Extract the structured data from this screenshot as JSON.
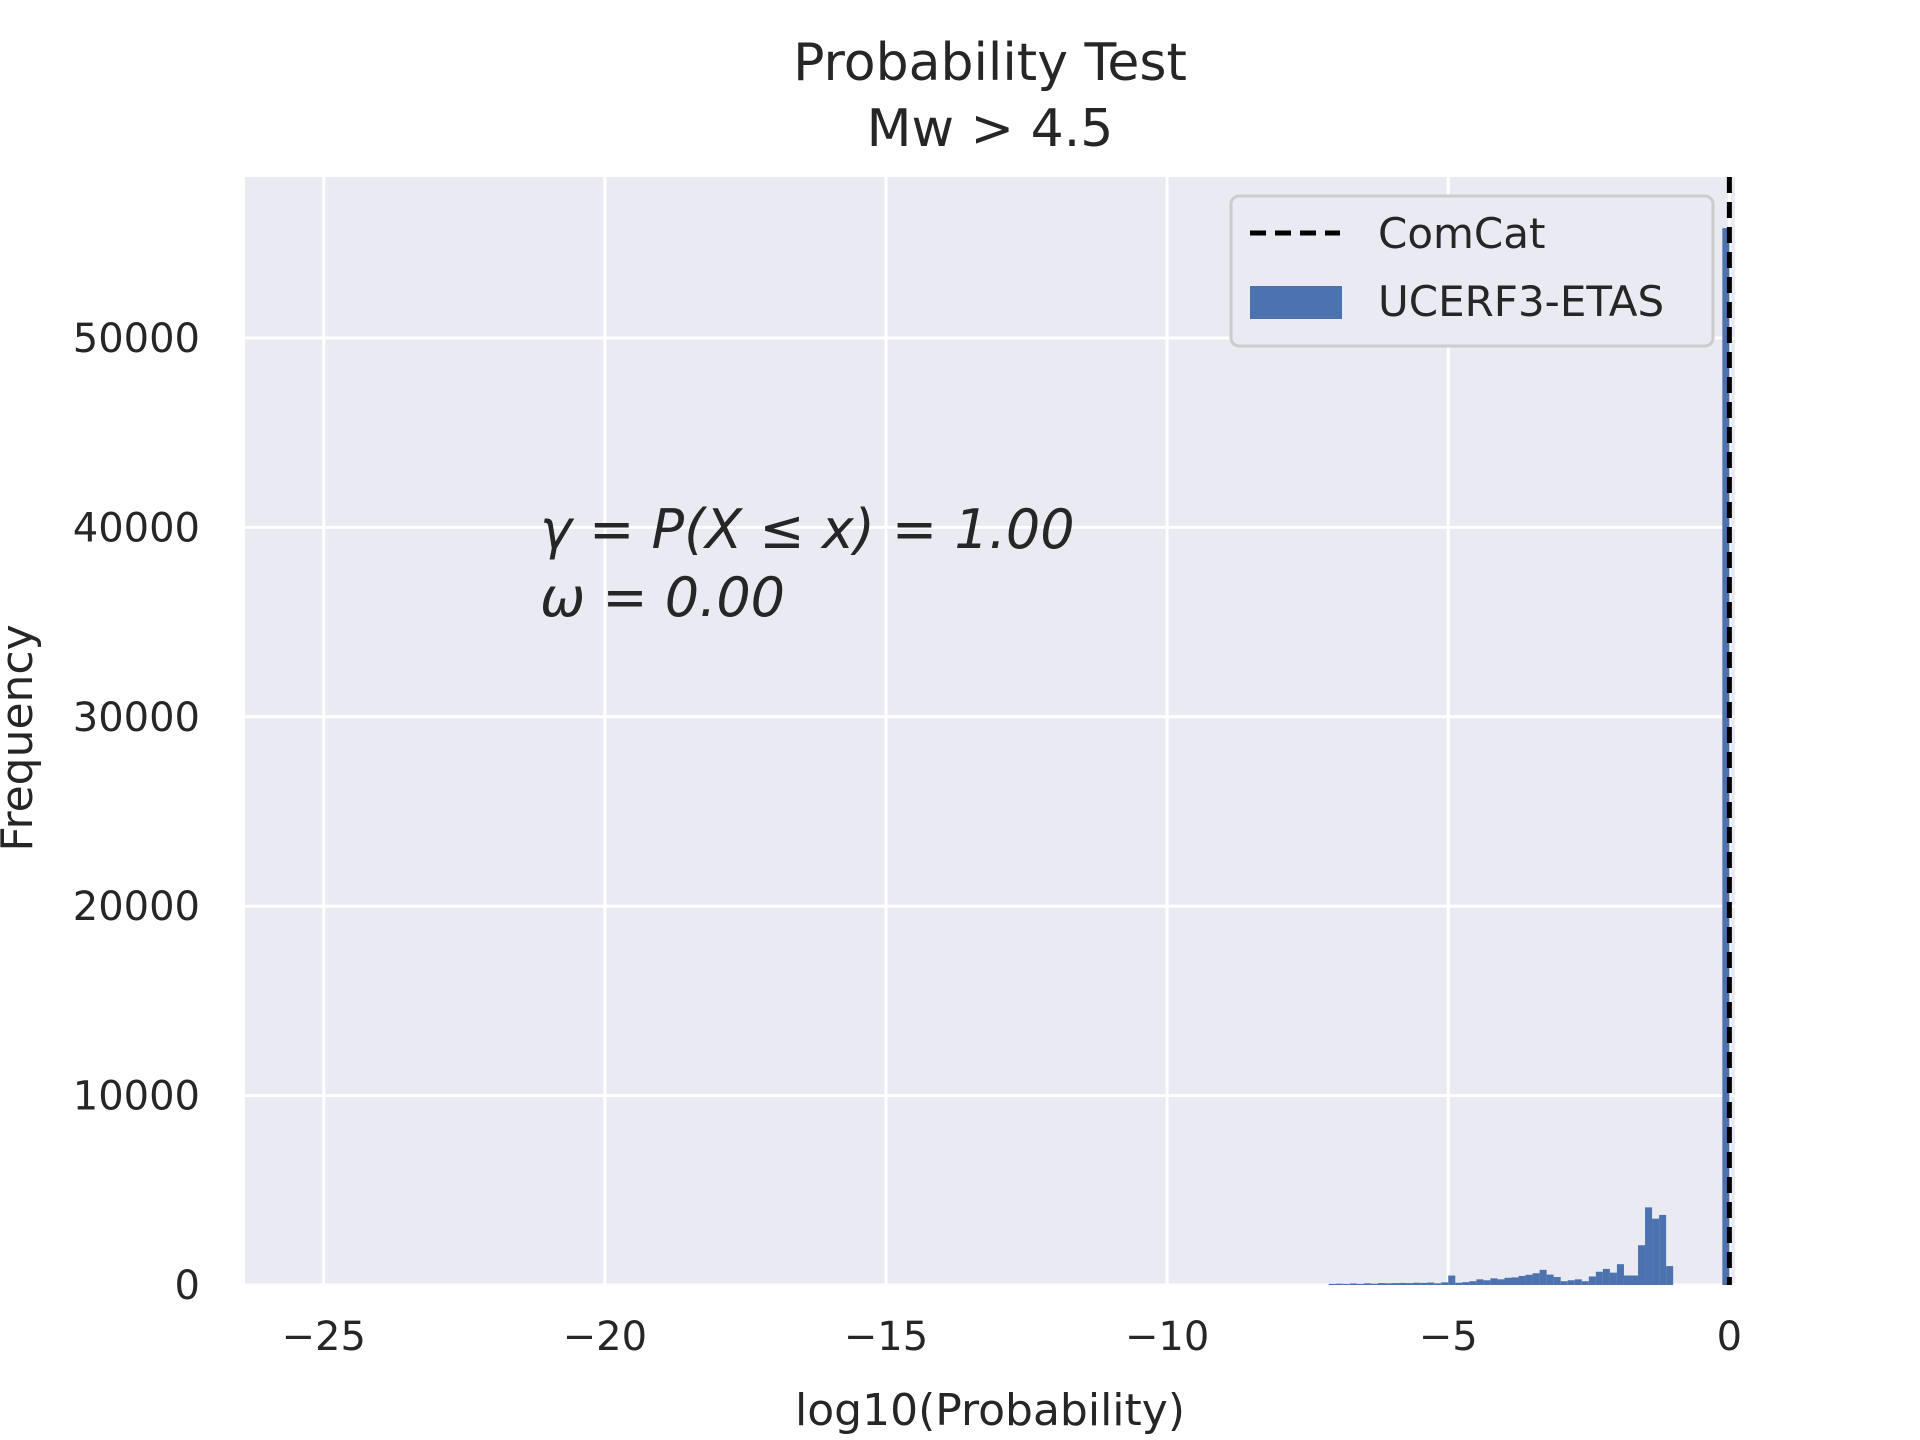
{
  "chart_data": {
    "type": "bar",
    "title": "Probability Test",
    "subtitle": "Mw > 4.5",
    "xlabel": "log10(Probability)",
    "ylabel": "Frequency",
    "xlim": [
      -26.4,
      0.1
    ],
    "ylim": [
      0,
      58500
    ],
    "xticks": [
      -25,
      -20,
      -15,
      -10,
      -5,
      0
    ],
    "xtick_labels": [
      "−25",
      "−20",
      "−15",
      "−10",
      "−5",
      "0"
    ],
    "yticks": [
      0,
      10000,
      20000,
      30000,
      40000,
      50000
    ],
    "ytick_labels": [
      "0",
      "10000",
      "20000",
      "30000",
      "40000",
      "50000"
    ],
    "grid": true,
    "legend_position": "top-right",
    "colors": {
      "background": "#eaeaf2",
      "grid": "#ffffff",
      "bars": "#4c72b0",
      "observed_line": "#000000"
    },
    "observed": {
      "name": "ComCat",
      "x": 0.0,
      "style": "dashed"
    },
    "histogram": {
      "name": "UCERF3-ETAS",
      "bin_width": 0.125,
      "bins": [
        {
          "x": -7.125,
          "y": 60
        },
        {
          "x": -7.0,
          "y": 70
        },
        {
          "x": -6.875,
          "y": 60
        },
        {
          "x": -6.75,
          "y": 80
        },
        {
          "x": -6.625,
          "y": 60
        },
        {
          "x": -6.5,
          "y": 90
        },
        {
          "x": -6.375,
          "y": 70
        },
        {
          "x": -6.25,
          "y": 100
        },
        {
          "x": -6.125,
          "y": 90
        },
        {
          "x": -6.0,
          "y": 100
        },
        {
          "x": -5.875,
          "y": 110
        },
        {
          "x": -5.75,
          "y": 100
        },
        {
          "x": -5.625,
          "y": 120
        },
        {
          "x": -5.5,
          "y": 110
        },
        {
          "x": -5.375,
          "y": 130
        },
        {
          "x": -5.25,
          "y": 90
        },
        {
          "x": -5.125,
          "y": 140
        },
        {
          "x": -5.0,
          "y": 500
        },
        {
          "x": -4.875,
          "y": 120
        },
        {
          "x": -4.75,
          "y": 150
        },
        {
          "x": -4.625,
          "y": 200
        },
        {
          "x": -4.5,
          "y": 300
        },
        {
          "x": -4.375,
          "y": 250
        },
        {
          "x": -4.25,
          "y": 350
        },
        {
          "x": -4.125,
          "y": 300
        },
        {
          "x": -4.0,
          "y": 380
        },
        {
          "x": -3.875,
          "y": 400
        },
        {
          "x": -3.75,
          "y": 480
        },
        {
          "x": -3.625,
          "y": 540
        },
        {
          "x": -3.5,
          "y": 620
        },
        {
          "x": -3.375,
          "y": 800
        },
        {
          "x": -3.25,
          "y": 550
        },
        {
          "x": -3.125,
          "y": 420
        },
        {
          "x": -3.0,
          "y": 200
        },
        {
          "x": -2.875,
          "y": 250
        },
        {
          "x": -2.75,
          "y": 300
        },
        {
          "x": -2.625,
          "y": 200
        },
        {
          "x": -2.5,
          "y": 450
        },
        {
          "x": -2.375,
          "y": 700
        },
        {
          "x": -2.25,
          "y": 850
        },
        {
          "x": -2.125,
          "y": 650
        },
        {
          "x": -2.0,
          "y": 1100
        },
        {
          "x": -1.875,
          "y": 500
        },
        {
          "x": -1.75,
          "y": 500
        },
        {
          "x": -1.625,
          "y": 2100
        },
        {
          "x": -1.5,
          "y": 4100
        },
        {
          "x": -1.375,
          "y": 3500
        },
        {
          "x": -1.25,
          "y": 3700
        },
        {
          "x": -1.125,
          "y": 1000
        },
        {
          "x": -0.125,
          "y": 55800
        }
      ]
    },
    "annotations": [
      "γ = P(X ≤ x) = 1.00",
      "ω = 0.00"
    ]
  }
}
